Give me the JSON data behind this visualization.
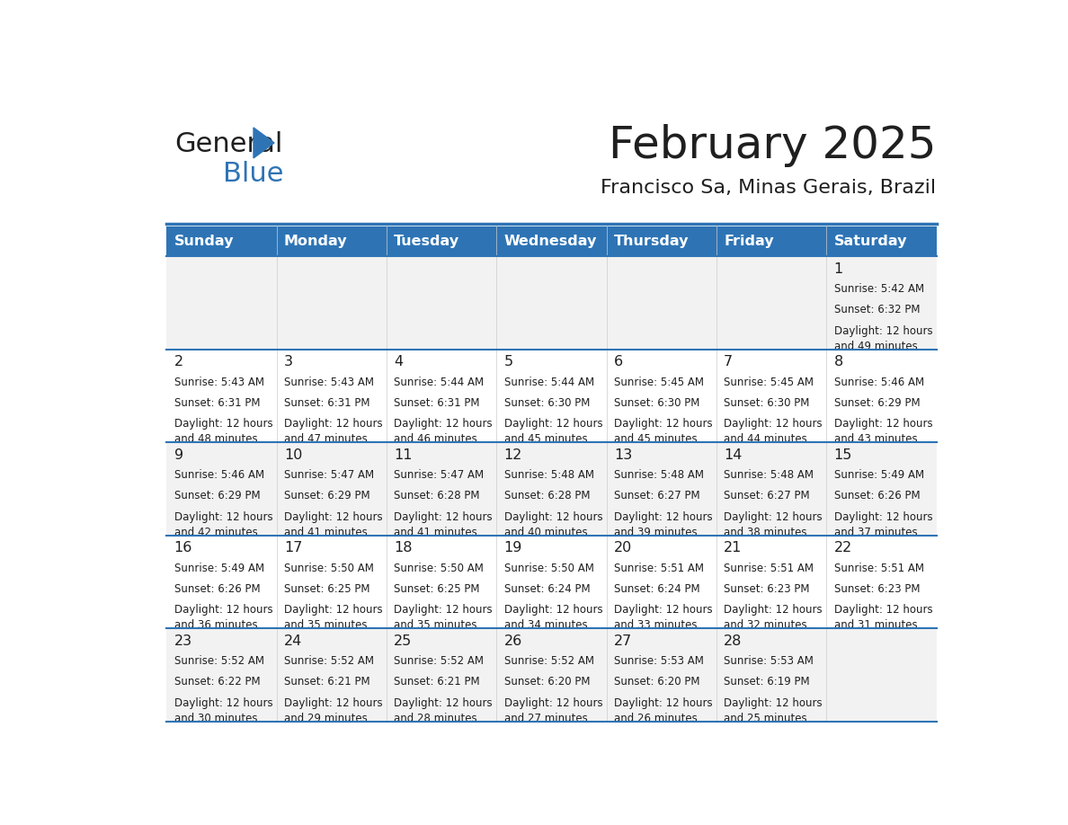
{
  "title": "February 2025",
  "subtitle": "Francisco Sa, Minas Gerais, Brazil",
  "header_bg_color": "#2E74B5",
  "header_text_color": "#FFFFFF",
  "title_color": "#1F1F1F",
  "subtitle_color": "#1F1F1F",
  "day_headers": [
    "Sunday",
    "Monday",
    "Tuesday",
    "Wednesday",
    "Thursday",
    "Friday",
    "Saturday"
  ],
  "row_bg_colors": [
    "#F2F2F2",
    "#FFFFFF"
  ],
  "separator_color": "#2E74B5",
  "text_color": "#1F1F1F",
  "logo_general_color": "#1F1F1F",
  "logo_blue_color": "#2E74B5",
  "calendar": [
    [
      {
        "day": null,
        "sunrise": null,
        "sunset": null,
        "daylight": null
      },
      {
        "day": null,
        "sunrise": null,
        "sunset": null,
        "daylight": null
      },
      {
        "day": null,
        "sunrise": null,
        "sunset": null,
        "daylight": null
      },
      {
        "day": null,
        "sunrise": null,
        "sunset": null,
        "daylight": null
      },
      {
        "day": null,
        "sunrise": null,
        "sunset": null,
        "daylight": null
      },
      {
        "day": null,
        "sunrise": null,
        "sunset": null,
        "daylight": null
      },
      {
        "day": 1,
        "sunrise": "5:42 AM",
        "sunset": "6:32 PM",
        "daylight": "12 hours\nand 49 minutes."
      }
    ],
    [
      {
        "day": 2,
        "sunrise": "5:43 AM",
        "sunset": "6:31 PM",
        "daylight": "12 hours\nand 48 minutes."
      },
      {
        "day": 3,
        "sunrise": "5:43 AM",
        "sunset": "6:31 PM",
        "daylight": "12 hours\nand 47 minutes."
      },
      {
        "day": 4,
        "sunrise": "5:44 AM",
        "sunset": "6:31 PM",
        "daylight": "12 hours\nand 46 minutes."
      },
      {
        "day": 5,
        "sunrise": "5:44 AM",
        "sunset": "6:30 PM",
        "daylight": "12 hours\nand 45 minutes."
      },
      {
        "day": 6,
        "sunrise": "5:45 AM",
        "sunset": "6:30 PM",
        "daylight": "12 hours\nand 45 minutes."
      },
      {
        "day": 7,
        "sunrise": "5:45 AM",
        "sunset": "6:30 PM",
        "daylight": "12 hours\nand 44 minutes."
      },
      {
        "day": 8,
        "sunrise": "5:46 AM",
        "sunset": "6:29 PM",
        "daylight": "12 hours\nand 43 minutes."
      }
    ],
    [
      {
        "day": 9,
        "sunrise": "5:46 AM",
        "sunset": "6:29 PM",
        "daylight": "12 hours\nand 42 minutes."
      },
      {
        "day": 10,
        "sunrise": "5:47 AM",
        "sunset": "6:29 PM",
        "daylight": "12 hours\nand 41 minutes."
      },
      {
        "day": 11,
        "sunrise": "5:47 AM",
        "sunset": "6:28 PM",
        "daylight": "12 hours\nand 41 minutes."
      },
      {
        "day": 12,
        "sunrise": "5:48 AM",
        "sunset": "6:28 PM",
        "daylight": "12 hours\nand 40 minutes."
      },
      {
        "day": 13,
        "sunrise": "5:48 AM",
        "sunset": "6:27 PM",
        "daylight": "12 hours\nand 39 minutes."
      },
      {
        "day": 14,
        "sunrise": "5:48 AM",
        "sunset": "6:27 PM",
        "daylight": "12 hours\nand 38 minutes."
      },
      {
        "day": 15,
        "sunrise": "5:49 AM",
        "sunset": "6:26 PM",
        "daylight": "12 hours\nand 37 minutes."
      }
    ],
    [
      {
        "day": 16,
        "sunrise": "5:49 AM",
        "sunset": "6:26 PM",
        "daylight": "12 hours\nand 36 minutes."
      },
      {
        "day": 17,
        "sunrise": "5:50 AM",
        "sunset": "6:25 PM",
        "daylight": "12 hours\nand 35 minutes."
      },
      {
        "day": 18,
        "sunrise": "5:50 AM",
        "sunset": "6:25 PM",
        "daylight": "12 hours\nand 35 minutes."
      },
      {
        "day": 19,
        "sunrise": "5:50 AM",
        "sunset": "6:24 PM",
        "daylight": "12 hours\nand 34 minutes."
      },
      {
        "day": 20,
        "sunrise": "5:51 AM",
        "sunset": "6:24 PM",
        "daylight": "12 hours\nand 33 minutes."
      },
      {
        "day": 21,
        "sunrise": "5:51 AM",
        "sunset": "6:23 PM",
        "daylight": "12 hours\nand 32 minutes."
      },
      {
        "day": 22,
        "sunrise": "5:51 AM",
        "sunset": "6:23 PM",
        "daylight": "12 hours\nand 31 minutes."
      }
    ],
    [
      {
        "day": 23,
        "sunrise": "5:52 AM",
        "sunset": "6:22 PM",
        "daylight": "12 hours\nand 30 minutes."
      },
      {
        "day": 24,
        "sunrise": "5:52 AM",
        "sunset": "6:21 PM",
        "daylight": "12 hours\nand 29 minutes."
      },
      {
        "day": 25,
        "sunrise": "5:52 AM",
        "sunset": "6:21 PM",
        "daylight": "12 hours\nand 28 minutes."
      },
      {
        "day": 26,
        "sunrise": "5:52 AM",
        "sunset": "6:20 PM",
        "daylight": "12 hours\nand 27 minutes."
      },
      {
        "day": 27,
        "sunrise": "5:53 AM",
        "sunset": "6:20 PM",
        "daylight": "12 hours\nand 26 minutes."
      },
      {
        "day": 28,
        "sunrise": "5:53 AM",
        "sunset": "6:19 PM",
        "daylight": "12 hours\nand 25 minutes."
      },
      {
        "day": null,
        "sunrise": null,
        "sunset": null,
        "daylight": null
      }
    ]
  ]
}
